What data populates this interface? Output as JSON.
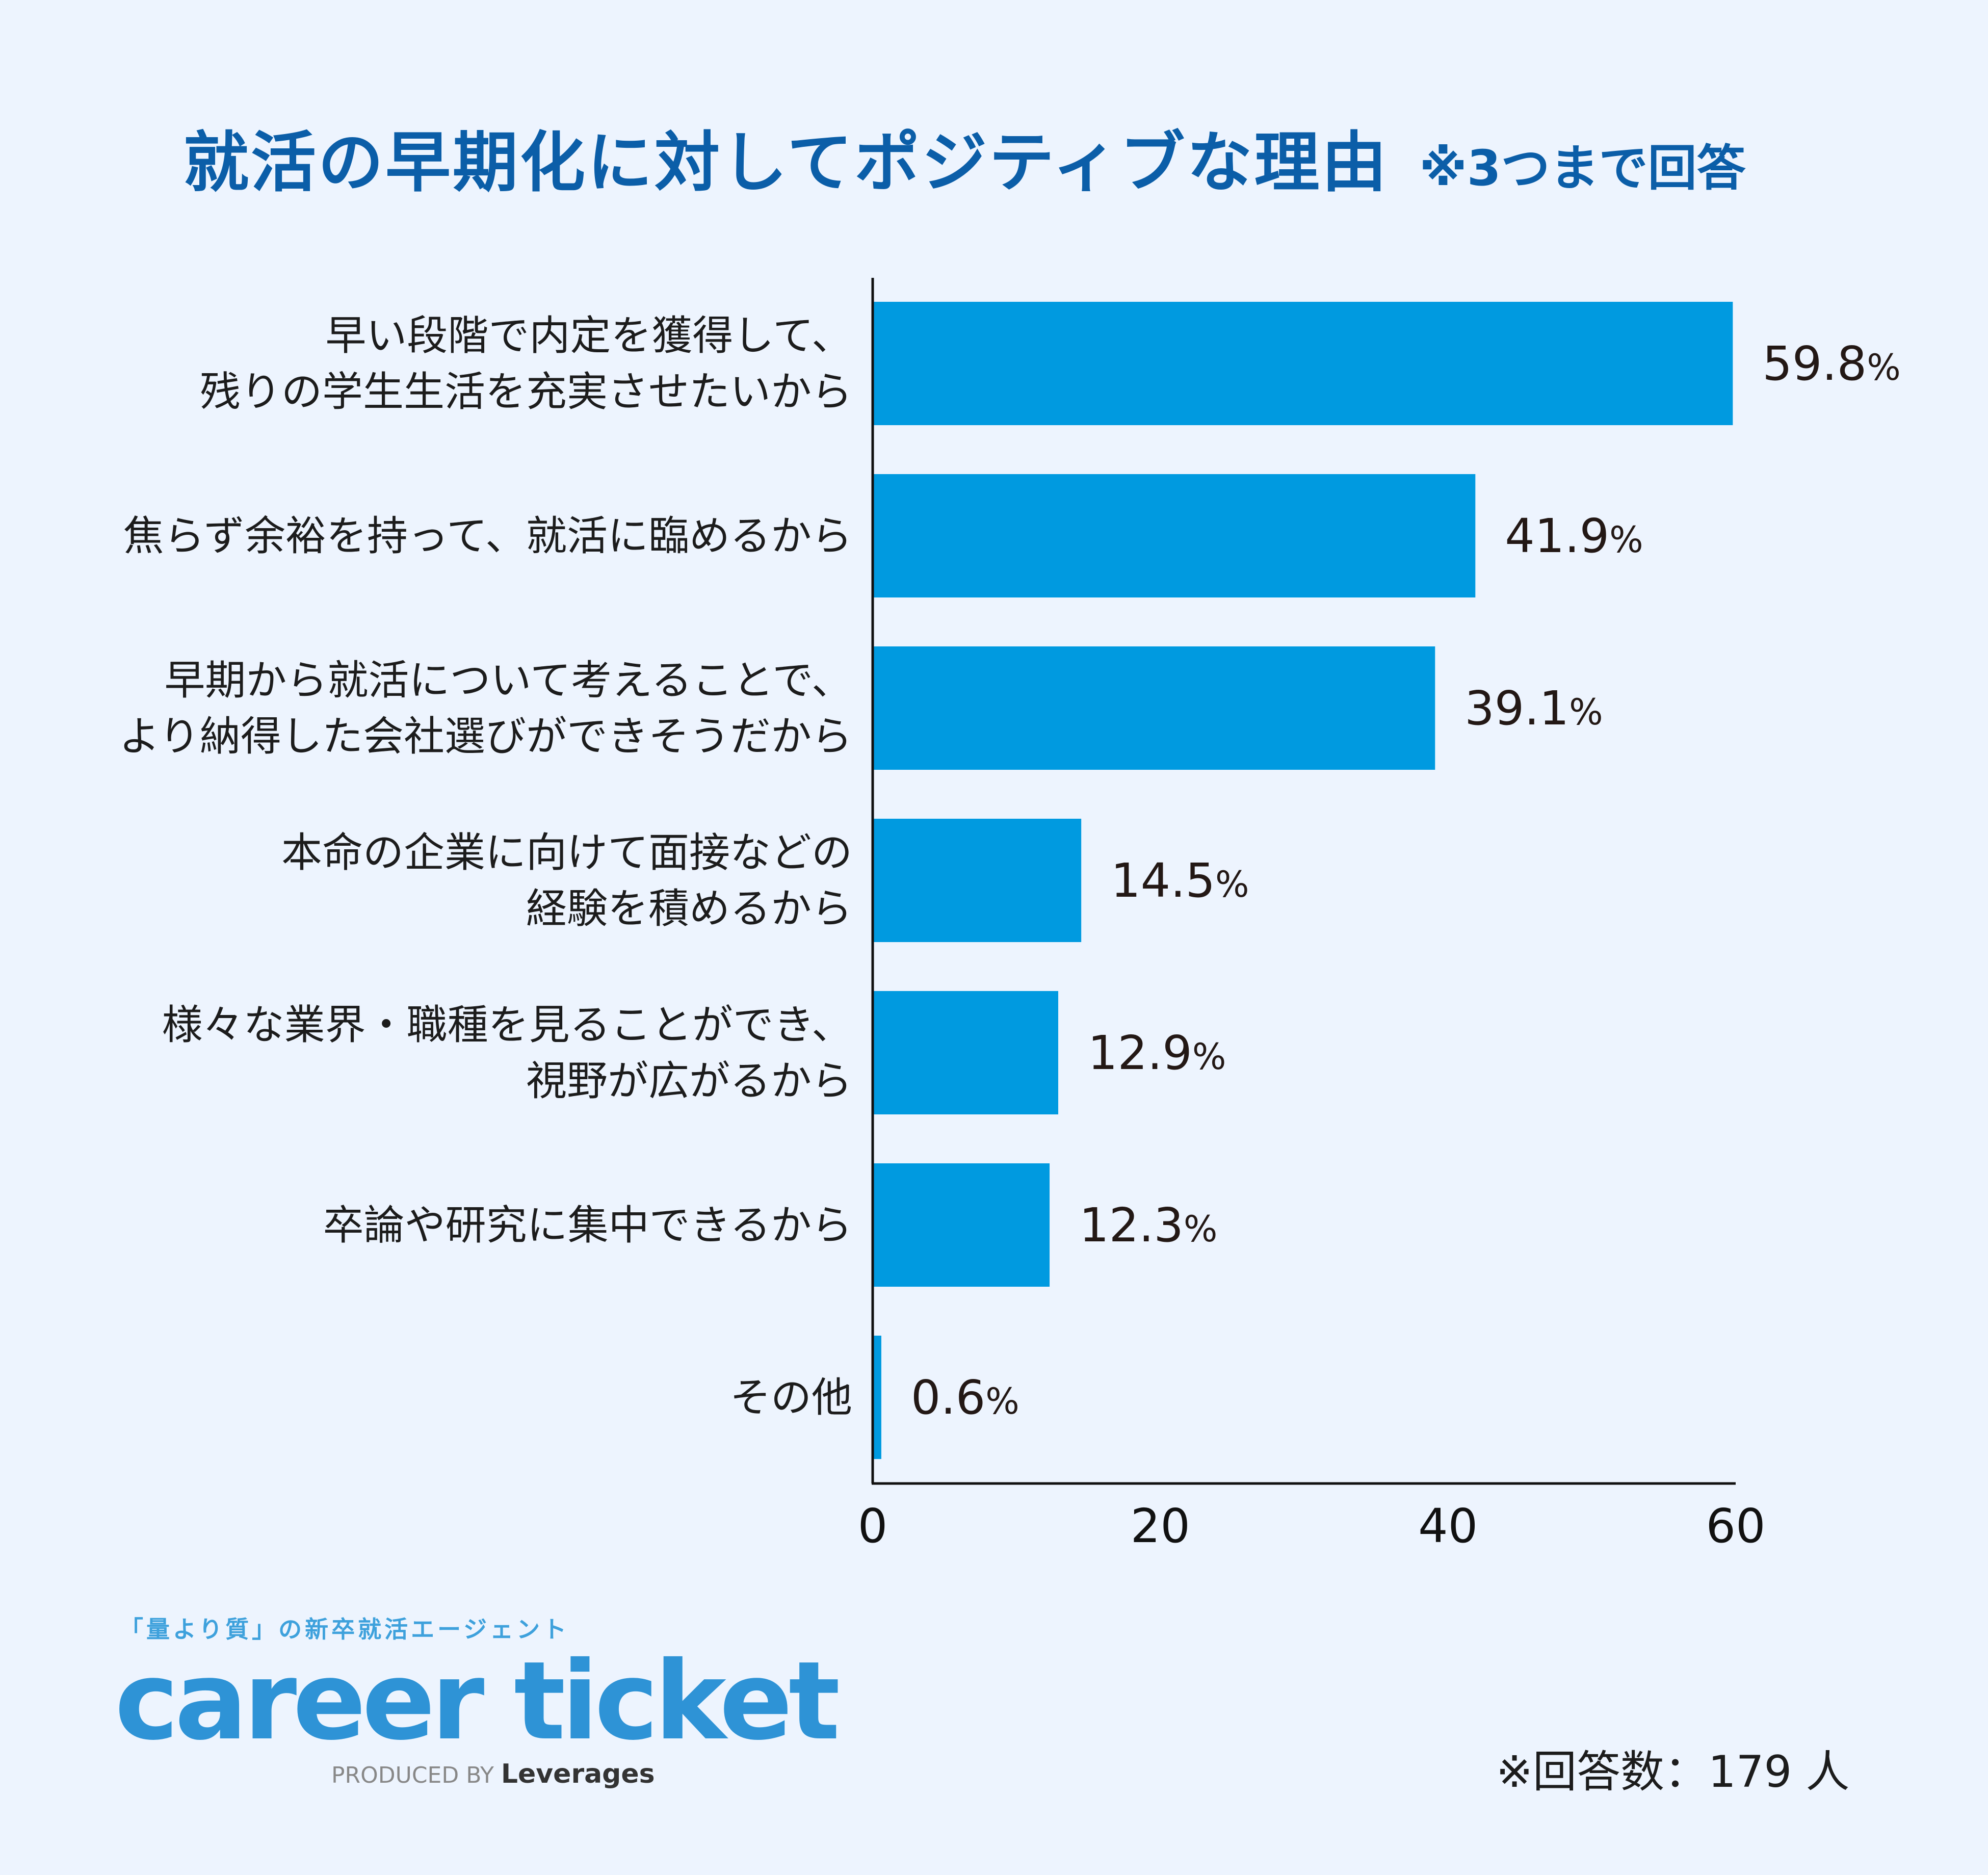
{
  "title": {
    "main": "就活の早期化に対してポジティブな理由",
    "note": "※3つまで回答"
  },
  "chart_data": {
    "type": "bar",
    "orientation": "horizontal",
    "categories": [
      [
        "早い段階で内定を獲得して、",
        "残りの学生生活を充実させたいから"
      ],
      [
        "焦らず余裕を持って、就活に臨めるから"
      ],
      [
        "早期から就活について考えることで、",
        "より納得した会社選びができそうだから"
      ],
      [
        "本命の企業に向けて面接などの",
        "経験を積めるから"
      ],
      [
        "様々な業界・職種を見ることができ、",
        "視野が広がるから"
      ],
      [
        "卒論や研究に集中できるから"
      ],
      [
        "その他"
      ]
    ],
    "values": [
      59.8,
      41.9,
      39.1,
      14.5,
      12.9,
      12.3,
      0.6
    ],
    "value_labels": [
      "59.8",
      "41.9",
      "39.1",
      "14.5",
      "12.9",
      "12.3",
      "0.6"
    ],
    "value_unit": "%",
    "xlim": [
      0,
      60
    ],
    "xticks": [
      "0",
      "20",
      "40",
      "60"
    ],
    "bar_color": "#009ae0",
    "grid": false
  },
  "logo": {
    "tagline": "「量より質」の新卒就活エージェント",
    "wordmark": "career ticket",
    "produced_by": "PRODUCED BY",
    "company": "Leverages"
  },
  "footer": {
    "respondents": "※回答数：179 人"
  }
}
